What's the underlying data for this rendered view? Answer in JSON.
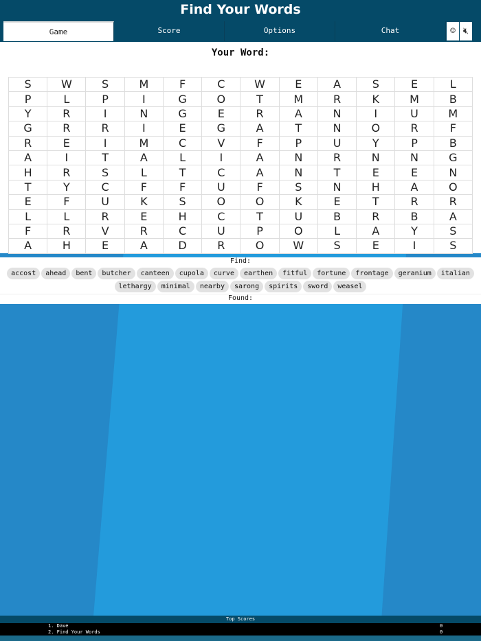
{
  "title": "Find Your Words",
  "tabs": [
    {
      "label": "Game"
    },
    {
      "label": "Score"
    },
    {
      "label": "Options"
    },
    {
      "label": "Chat"
    }
  ],
  "icons": {
    "emoji": "☺",
    "mute": "🔇︎"
  },
  "your_word_label": "Your Word:",
  "grid": [
    "SWSMFCWEASEL",
    "PLPIGOTMRKMB",
    "YRINGERANIUM",
    "GRRIEGATNORF",
    "REIMCVFPUYPB",
    "AITALIANRNNG",
    "HRSLTCANTEEN",
    "TYCFFUFSNHAO",
    "EFUKSOOKETRR",
    "LLREHCTUBRBA",
    "FRVRCUPOLAYS",
    "AHEADROWSEIS"
  ],
  "find_label": "Find:",
  "words": [
    "accost",
    "ahead",
    "bent",
    "butcher",
    "canteen",
    "cupola",
    "curve",
    "earthen",
    "fitful",
    "fortune",
    "frontage",
    "geranium",
    "italian",
    "lethargy",
    "minimal",
    "nearby",
    "sarong",
    "spirits",
    "sword",
    "weasel"
  ],
  "found_label": "Found:",
  "top_scores": {
    "title": "Top Scores",
    "rows": [
      {
        "name": "1. Dave",
        "score": "0"
      },
      {
        "name": "2. Find Your Words",
        "score": "0"
      }
    ]
  }
}
